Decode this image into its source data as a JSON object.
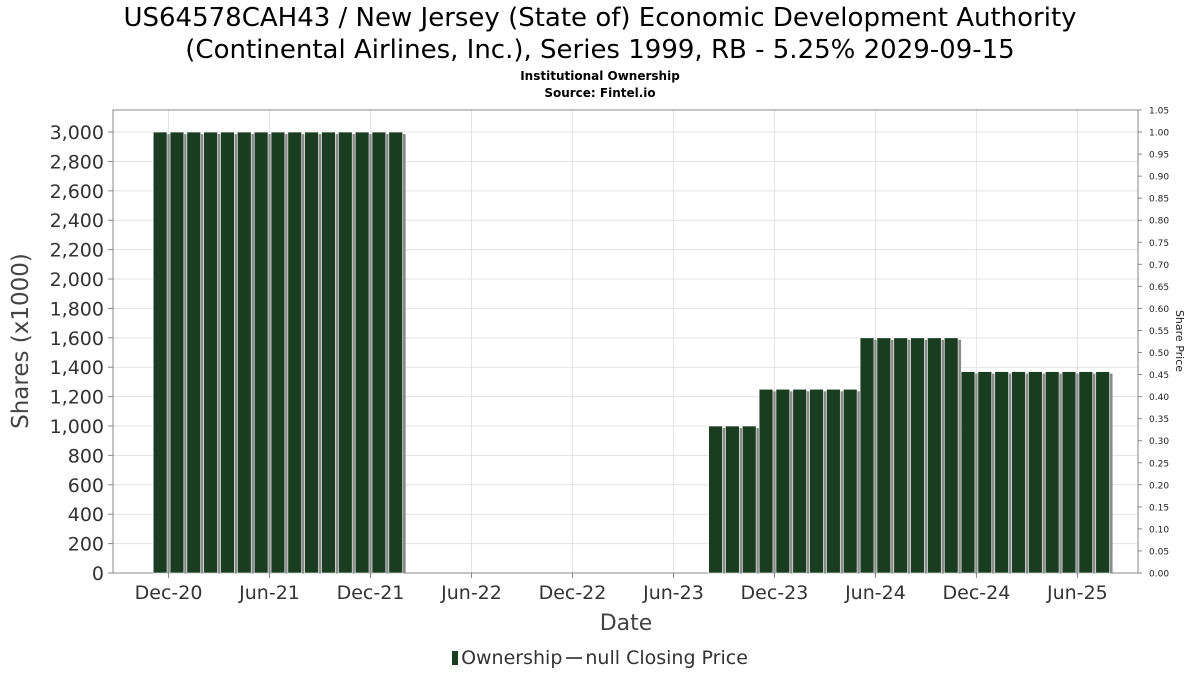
{
  "chart_data": {
    "type": "bar",
    "title_line1": "US64578CAH43 / New Jersey (State of) Economic Development Authority",
    "title_line2": "(Continental Airlines, Inc.), Series 1999, RB - 5.25% 2029-09-15",
    "subtitle_line1": "Institutional Ownership",
    "subtitle_line2": "Source: Fintel.io",
    "xlabel": "Date",
    "ylabel": "Shares (x1000)",
    "y2label": "Share Price",
    "ylim": [
      0,
      3150
    ],
    "y2lim": [
      0,
      1.05
    ],
    "y_ticks": [
      "0",
      "200",
      "400",
      "600",
      "800",
      "1,000",
      "1,200",
      "1,400",
      "1,600",
      "1,800",
      "2,000",
      "2,200",
      "2,400",
      "2,600",
      "2,800",
      "3,000"
    ],
    "y2_ticks": [
      "0.00",
      "0.05",
      "0.10",
      "0.15",
      "0.20",
      "0.25",
      "0.30",
      "0.35",
      "0.40",
      "0.45",
      "0.50",
      "0.55",
      "0.60",
      "0.65",
      "0.70",
      "0.75",
      "0.80",
      "0.85",
      "0.90",
      "0.95",
      "1.00",
      "1.05"
    ],
    "x_ticks": [
      "Dec-20",
      "Jun-21",
      "Dec-21",
      "Jun-22",
      "Dec-22",
      "Jun-23",
      "Dec-23",
      "Jun-24",
      "Dec-24",
      "Jun-25"
    ],
    "x_tick_months": [
      0,
      6,
      12,
      18,
      24,
      30,
      36,
      42,
      48,
      54
    ],
    "x_range_months": [
      -3.3,
      57.6
    ],
    "series": [
      {
        "name": "Ownership",
        "color": "#1a3d22",
        "months": [
          -0.5,
          0.5,
          1.5,
          2.5,
          3.5,
          4.5,
          5.5,
          6.5,
          7.5,
          8.5,
          9.5,
          10.5,
          11.5,
          12.5,
          13.5,
          32.5,
          33.5,
          34.5,
          35.5,
          36.5,
          37.5,
          38.5,
          39.5,
          40.5,
          41.5,
          42.5,
          43.5,
          44.5,
          45.5,
          46.5,
          47.5,
          48.5,
          49.5,
          50.5,
          51.5,
          52.5,
          53.5,
          54.5,
          55.5
        ],
        "values": [
          3000,
          3000,
          3000,
          3000,
          3000,
          3000,
          3000,
          3000,
          3000,
          3000,
          3000,
          3000,
          3000,
          3000,
          3000,
          1000,
          1000,
          1000,
          1250,
          1250,
          1250,
          1250,
          1250,
          1250,
          1600,
          1600,
          1600,
          1600,
          1600,
          1600,
          1370,
          1370,
          1370,
          1370,
          1370,
          1370,
          1370,
          1370,
          1370
        ]
      }
    ],
    "legend": {
      "position": "bottom",
      "ownership_label": "Ownership",
      "price_label": "null Closing Price"
    },
    "grid": true
  }
}
